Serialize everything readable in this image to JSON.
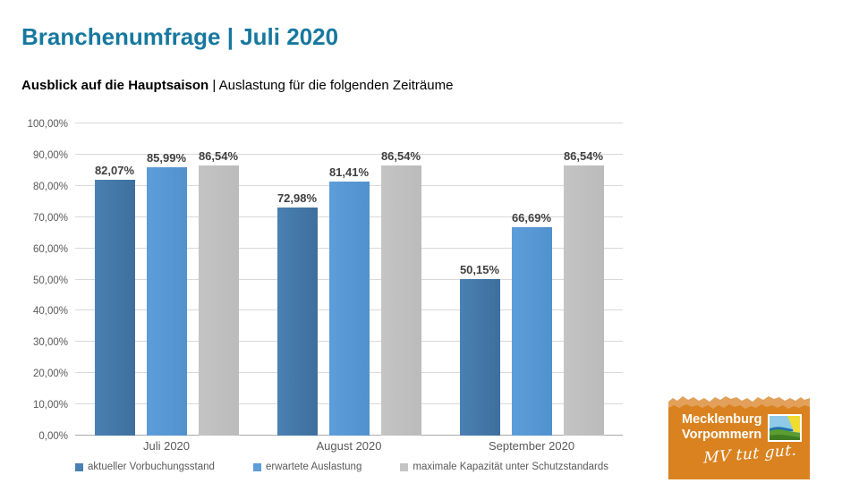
{
  "slide": {
    "title": "Branchenumfrage | Juli 2020",
    "subtitle_bold": "Ausblick auf die Hauptsaison",
    "subtitle_sep": " | ",
    "subtitle_rest": "Auslastung für die folgenden Zeiträume"
  },
  "chart_data": {
    "type": "bar",
    "categories": [
      "Juli 2020",
      "August 2020",
      "September 2020"
    ],
    "series": [
      {
        "name": "aktueller Vorbuchungsstand",
        "values": [
          82.07,
          72.98,
          50.15
        ],
        "labels": [
          "82,07%",
          "72,98%",
          "50,15%"
        ],
        "color": "#4A80B2",
        "color2": "#3E6F9E"
      },
      {
        "name": "erwartete Auslastung",
        "values": [
          85.99,
          81.41,
          66.69
        ],
        "labels": [
          "85,99%",
          "81,41%",
          "66,69%"
        ],
        "color": "#5D9DDA",
        "color2": "#5191CE"
      },
      {
        "name": "maximale Kapazität unter Schutzstandards",
        "values": [
          86.54,
          86.54,
          86.54
        ],
        "labels": [
          "86,54%",
          "86,54%",
          "86,54%"
        ],
        "color": "#C4C4C4",
        "color2": "#BBBBBB"
      }
    ],
    "title": "Ausblick auf die Hauptsaison | Auslastung für die folgenden Zeiträume",
    "xlabel": "",
    "ylabel": "",
    "ylim": [
      0,
      100
    ],
    "ytick_step": 10,
    "ytick_labels_bottom_to_top": [
      "0,00%",
      "10,00%",
      "20,00%",
      "30,00%",
      "40,00%",
      "50,00%",
      "60,00%",
      "70,00%",
      "80,00%",
      "90,00%",
      "100,00%"
    ],
    "grid": true,
    "legend_position": "bottom"
  },
  "logo": {
    "region_line1": "Mecklenburg",
    "region_line2": "Vorpommern",
    "slogan": "MV tut gut."
  },
  "colors": {
    "title_teal": "#17789E",
    "axis_text": "#595959",
    "data_label": "#3F3F3F",
    "gridline": "#D9D9D9",
    "axis_line": "#ABABAB",
    "logo_orange": "#D9821F",
    "logo_torn_light": "#E2A05A"
  }
}
